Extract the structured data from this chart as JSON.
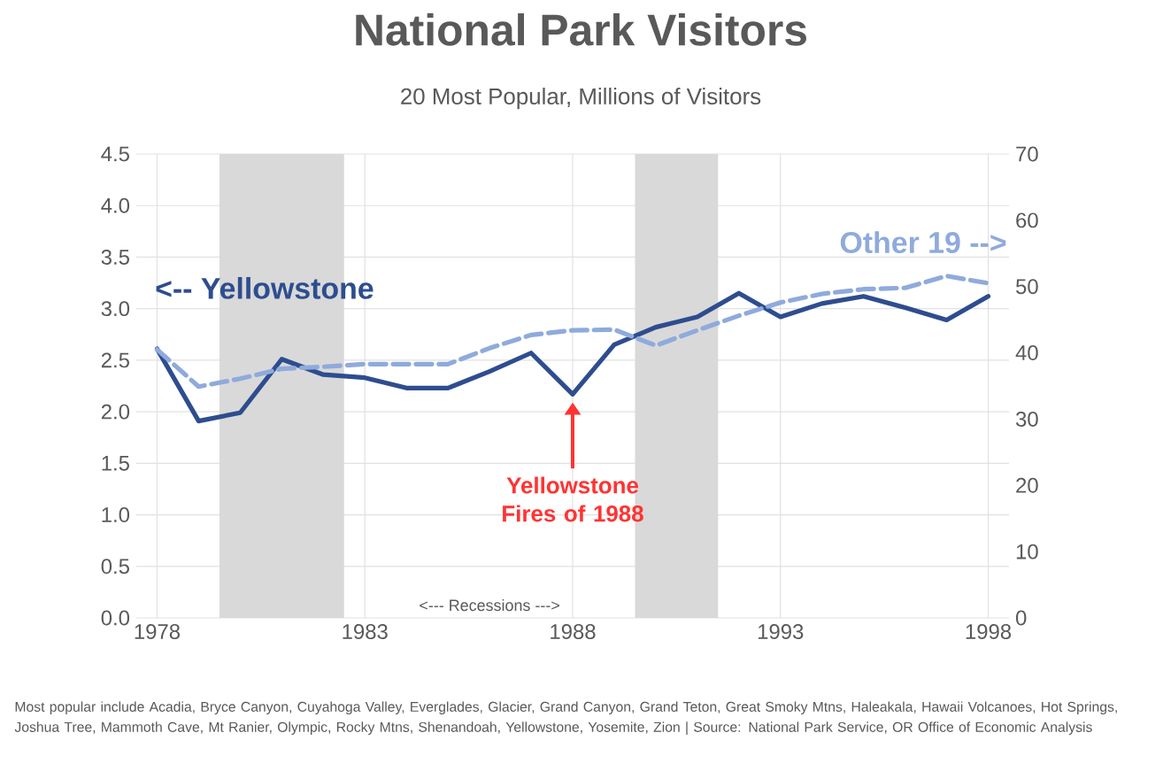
{
  "chart_data": {
    "type": "line",
    "title": "National Park Visitors",
    "subtitle": "20 Most Popular, Millions of Visitors",
    "x": [
      1978,
      1979,
      1980,
      1981,
      1982,
      1983,
      1984,
      1985,
      1986,
      1987,
      1988,
      1989,
      1990,
      1991,
      1992,
      1993,
      1994,
      1995,
      1996,
      1997,
      1998
    ],
    "series": [
      {
        "name": "<-- Yellowstone",
        "color": "#2e4d8f",
        "line_style": "solid",
        "values": [
          2.61,
          1.91,
          1.99,
          2.51,
          2.36,
          2.33,
          2.23,
          2.23,
          2.39,
          2.57,
          2.17,
          2.65,
          2.82,
          2.92,
          3.15,
          2.92,
          3.05,
          3.12,
          3.01,
          2.89,
          3.12
        ]
      },
      {
        "name": "Other 19 -->",
        "color": "#8faadc",
        "line_style": "dashed",
        "axis": "y2",
        "values": [
          40.5,
          34.9,
          36.1,
          37.6,
          37.9,
          38.3,
          38.3,
          38.3,
          40.7,
          42.7,
          43.4,
          43.5,
          41.1,
          43.4,
          45.6,
          47.6,
          48.9,
          49.6,
          49.8,
          51.6,
          50.5
        ]
      }
    ],
    "xlim": [
      1977.5,
      1998.5
    ],
    "xticks": [
      1978,
      1983,
      1988,
      1993,
      1998
    ],
    "ylim": [
      0,
      4.5
    ],
    "yticks": [
      {
        "value": 0,
        "label": "0.0"
      },
      0.5,
      {
        "value": 1,
        "label": "1.0"
      },
      1.5,
      {
        "value": 2,
        "label": "2.0"
      },
      2.5,
      {
        "value": 3,
        "label": "3.0"
      },
      3.5,
      {
        "value": 4,
        "label": "4.0"
      },
      4.5
    ],
    "y2lim": [
      0,
      70
    ],
    "y2ticks": [
      0,
      10,
      20,
      30,
      40,
      50,
      60,
      70
    ],
    "bands": [
      {
        "axis": "x",
        "from": 1979.5,
        "to": 1982.5,
        "color": "#d9d9d9"
      },
      {
        "axis": "x",
        "from": 1989.5,
        "to": 1991.5,
        "color": "#d9d9d9"
      }
    ],
    "annotations": [
      "Yellowstone Fires of 1988",
      "<---  Recessions  --->",
      "Most popular include Acadia, Bryce Canyon, Cuyahoga Valley, Everglades, Glacier, Grand Canyon, Grand Teton, Great Smoky Mtns, Haleakala, Hawaii Volcanoes, Hot Springs, Joshua Tree, Mammoth Cave, Mt Ranier, Olympic, Rocky Mtns, Shenandoah, Yellowstone, Yosemite, Zion | Source: National Park Service, OR Office of Economic Analysis"
    ],
    "grid": true,
    "marker": "none"
  }
}
